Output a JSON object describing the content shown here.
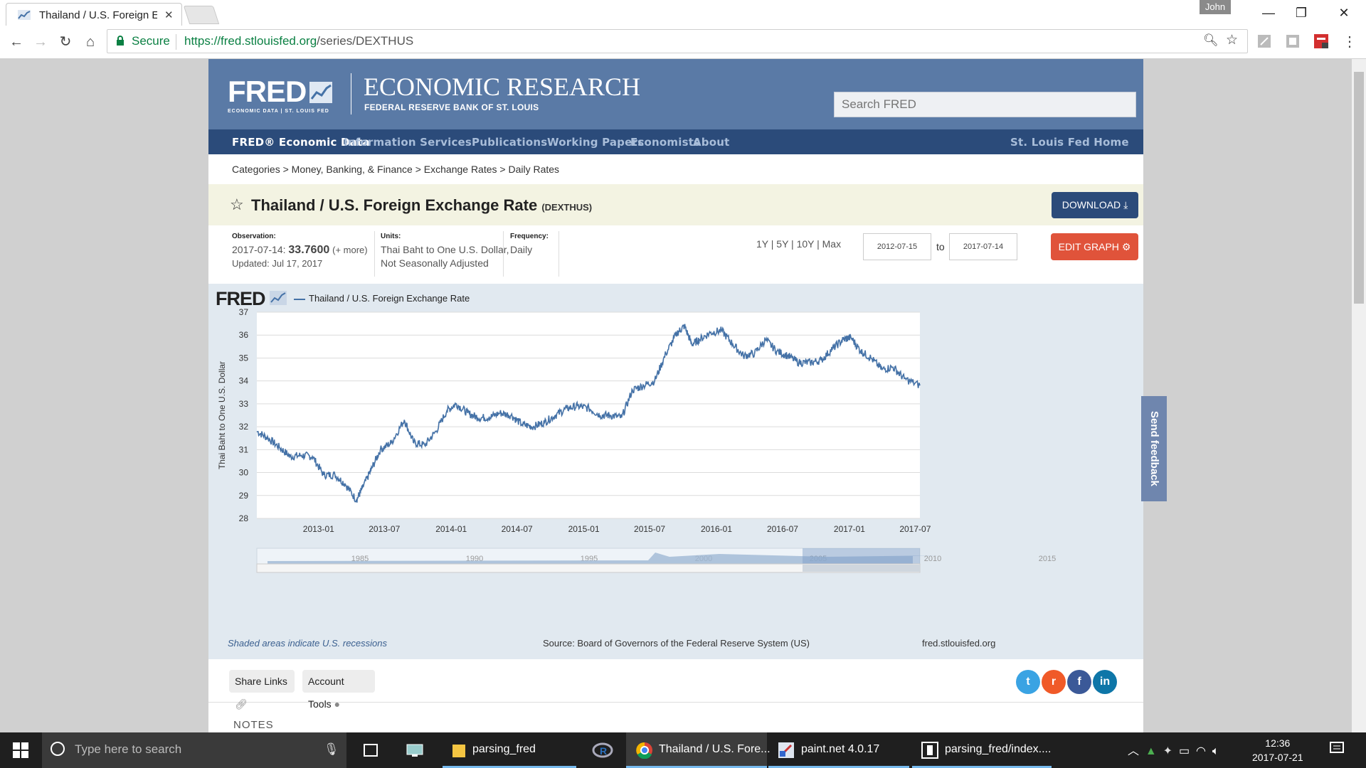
{
  "browser": {
    "tab_title": "Thailand / U.S. Foreign E",
    "user": "John",
    "secure_label": "Secure",
    "url_host": "https://fred.stlouisfed.org",
    "url_path": "/series/DEXTHUS"
  },
  "site": {
    "logo_text": "FRED",
    "logo_sub": "ECONOMIC DATA  |  ST. LOUIS FED",
    "heading": "ECONOMIC RESEARCH",
    "subheading": "FEDERAL RESERVE BANK OF ST. LOUIS",
    "search_placeholder": "Search FRED",
    "nav": [
      "FRED® Economic Data",
      "Information Services",
      "Publications",
      "Working Papers",
      "Economists",
      "About",
      "St. Louis Fed Home"
    ],
    "breadcrumbs": "Categories > Money, Banking, & Finance > Exchange Rates > Daily Rates"
  },
  "series": {
    "title": "Thailand / U.S. Foreign Exchange Rate",
    "code": "(DEXTHUS)",
    "download_label": "DOWNLOAD",
    "observation_label": "Observation:",
    "observation_date": "2017-07-14:",
    "observation_value": "33.7600",
    "observation_more": "(+ more)",
    "updated": "Updated: Jul 17, 2017",
    "units_label": "Units:",
    "units_line1": "Thai Baht to One U.S. Dollar,",
    "units_line2": "Not Seasonally Adjusted",
    "frequency_label": "Frequency:",
    "frequency": "Daily",
    "ranges": "1Y | 5Y | 10Y | Max",
    "date_from": "2012-07-15",
    "to_label": "to",
    "date_to": "2017-07-14",
    "edit_label": "EDIT GRAPH"
  },
  "graph": {
    "logo": "FRED",
    "legend": "Thailand / U.S. Foreign Exchange Rate",
    "recession_note": "Shaded areas indicate U.S. recessions",
    "source": "Source: Board of Governors of the Federal Reserve System (US)",
    "site_url": "fred.stlouisfed.org",
    "feedback": "Send feedback",
    "nav_years": [
      "1985",
      "1990",
      "1995",
      "2000",
      "2005",
      "2010",
      "2015"
    ]
  },
  "chart_data": {
    "type": "line",
    "ylabel": "Thai Baht to One U.S. Dollar",
    "ylim": [
      28,
      37
    ],
    "yticks": [
      28,
      29,
      30,
      31,
      32,
      33,
      34,
      35,
      36,
      37
    ],
    "xticks": [
      "2013-01",
      "2013-07",
      "2014-01",
      "2014-07",
      "2015-01",
      "2015-07",
      "2016-01",
      "2016-07",
      "2017-01",
      "2017-07"
    ],
    "series": [
      {
        "name": "Thailand / U.S. Foreign Exchange Rate",
        "color": "#4572a7",
        "points": [
          [
            "2012-07-15",
            31.8
          ],
          [
            "2012-08-15",
            31.5
          ],
          [
            "2012-09-15",
            31.1
          ],
          [
            "2012-10-15",
            30.7
          ],
          [
            "2012-11-15",
            30.75
          ],
          [
            "2012-12-15",
            30.7
          ],
          [
            "2013-01-15",
            29.9
          ],
          [
            "2013-02-15",
            29.9
          ],
          [
            "2013-03-15",
            29.5
          ],
          [
            "2013-04-15",
            28.8
          ],
          [
            "2013-05-01",
            29.3
          ],
          [
            "2013-05-25",
            30.1
          ],
          [
            "2013-06-20",
            31.0
          ],
          [
            "2013-07-20",
            31.3
          ],
          [
            "2013-08-25",
            32.3
          ],
          [
            "2013-09-20",
            31.3
          ],
          [
            "2013-10-20",
            31.2
          ],
          [
            "2013-11-20",
            31.8
          ],
          [
            "2013-12-20",
            32.7
          ],
          [
            "2014-01-15",
            33.0
          ],
          [
            "2014-02-15",
            32.6
          ],
          [
            "2014-03-15",
            32.4
          ],
          [
            "2014-04-15",
            32.4
          ],
          [
            "2014-05-15",
            32.6
          ],
          [
            "2014-06-15",
            32.5
          ],
          [
            "2014-07-15",
            32.1
          ],
          [
            "2014-08-15",
            32.0
          ],
          [
            "2014-09-15",
            32.2
          ],
          [
            "2014-10-15",
            32.5
          ],
          [
            "2014-11-15",
            32.8
          ],
          [
            "2014-12-15",
            32.9
          ],
          [
            "2015-01-15",
            32.8
          ],
          [
            "2015-02-15",
            32.5
          ],
          [
            "2015-03-15",
            32.5
          ],
          [
            "2015-04-15",
            32.4
          ],
          [
            "2015-05-15",
            33.6
          ],
          [
            "2015-06-15",
            33.8
          ],
          [
            "2015-07-15",
            34.0
          ],
          [
            "2015-08-15",
            35.2
          ],
          [
            "2015-09-15",
            36.1
          ],
          [
            "2015-10-05",
            36.4
          ],
          [
            "2015-10-25",
            35.6
          ],
          [
            "2015-11-15",
            35.8
          ],
          [
            "2015-12-15",
            36.1
          ],
          [
            "2016-01-15",
            36.2
          ],
          [
            "2016-02-15",
            35.6
          ],
          [
            "2016-03-15",
            35.1
          ],
          [
            "2016-04-15",
            35.2
          ],
          [
            "2016-05-15",
            35.8
          ],
          [
            "2016-06-15",
            35.3
          ],
          [
            "2016-07-15",
            35.1
          ],
          [
            "2016-08-15",
            34.8
          ],
          [
            "2016-09-15",
            34.8
          ],
          [
            "2016-10-15",
            34.9
          ],
          [
            "2016-11-15",
            35.4
          ],
          [
            "2016-12-15",
            35.8
          ],
          [
            "2017-01-05",
            35.9
          ],
          [
            "2017-02-01",
            35.3
          ],
          [
            "2017-03-01",
            35.0
          ],
          [
            "2017-04-01",
            34.5
          ],
          [
            "2017-05-01",
            34.6
          ],
          [
            "2017-06-01",
            34.1
          ],
          [
            "2017-07-14",
            33.8
          ]
        ]
      }
    ]
  },
  "share": {
    "share_links": "Share Links",
    "account_tools": "Account Tools",
    "notes": "NOTES"
  },
  "taskbar": {
    "search_placeholder": "Type here to search",
    "apps": [
      "parsing_fred",
      "Thailand / U.S. Fore...",
      "paint.net 4.0.17",
      "parsing_fred/index...."
    ],
    "time": "12:36",
    "date": "2017-07-21"
  }
}
